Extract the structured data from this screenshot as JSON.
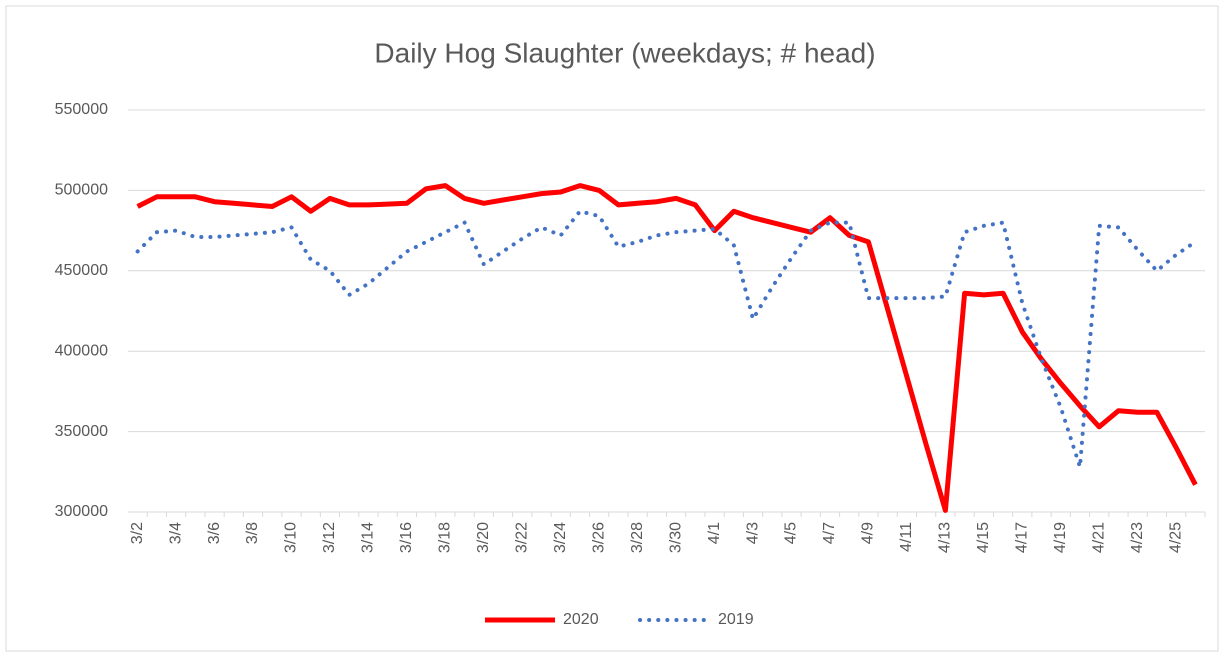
{
  "chart_data": {
    "type": "line",
    "title": "Daily Hog Slaughter (weekdays; # head)",
    "categories": [
      "3/2",
      null,
      "3/4",
      null,
      "3/6",
      null,
      "3/8",
      null,
      "3/10",
      null,
      "3/12",
      null,
      "3/14",
      null,
      "3/16",
      null,
      "3/18",
      null,
      "3/20",
      null,
      "3/22",
      null,
      "3/24",
      null,
      "3/26",
      null,
      "3/28",
      null,
      "3/30",
      null,
      "4/1",
      null,
      "4/3",
      null,
      "4/5",
      null,
      "4/7",
      null,
      "4/9",
      null,
      "4/11",
      null,
      "4/13",
      null,
      "4/15",
      null,
      "4/17",
      null,
      "4/19",
      null,
      "4/21",
      null,
      "4/23",
      null,
      "4/25",
      null
    ],
    "series": [
      {
        "name": "2020",
        "color": "#ff0000",
        "dash": "solid",
        "values": [
          490000,
          496000,
          496000,
          496000,
          493000,
          492000,
          491000,
          490000,
          496000,
          487000,
          495000,
          491000,
          491000,
          491500,
          492000,
          501000,
          503000,
          495000,
          492000,
          494000,
          496000,
          498000,
          499000,
          503000,
          500000,
          491000,
          492000,
          493000,
          495000,
          491000,
          475000,
          487000,
          483000,
          480000,
          477000,
          474000,
          483000,
          472000,
          468000,
          426000,
          384000,
          342000,
          301000,
          436000,
          435000,
          436000,
          412000,
          395000,
          380000,
          366000,
          353000,
          363000,
          362000,
          362000,
          340000,
          317000
        ]
      },
      {
        "name": "2019",
        "color": "#4472c4",
        "dash": "dotted",
        "values": [
          462000,
          474000,
          475000,
          471000,
          471000,
          472000,
          473000,
          474000,
          477000,
          457000,
          450000,
          435000,
          442000,
          452000,
          462000,
          468000,
          474000,
          480000,
          454000,
          462000,
          470000,
          477000,
          472000,
          487000,
          484000,
          465000,
          468000,
          472000,
          474000,
          475000,
          476000,
          466000,
          420000,
          440000,
          458000,
          475000,
          480000,
          480000,
          433000,
          433000,
          433000,
          433000,
          434000,
          474000,
          478000,
          480000,
          430000,
          395000,
          365000,
          328000,
          478000,
          477000,
          463000,
          450000,
          460000,
          468000
        ]
      }
    ],
    "ylim": [
      300000,
      550000
    ],
    "yticks": [
      300000,
      350000,
      400000,
      450000,
      500000,
      550000
    ],
    "grid": true,
    "legend": "bottom"
  }
}
